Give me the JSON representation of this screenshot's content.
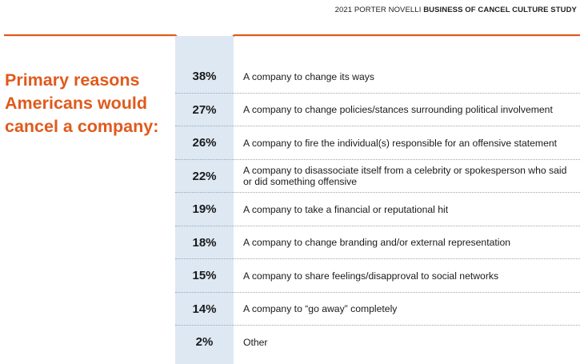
{
  "header": {
    "prefix": "2021 PORTER NOVELLI",
    "study": "BUSINESS OF CANCEL CULTURE STUDY"
  },
  "title": "Primary reasons Americans would cancel a company:",
  "colors": {
    "accent": "#e05a1c",
    "column_bg": "#dde8f3"
  },
  "chart_data": {
    "type": "table",
    "title": "Primary reasons Americans would cancel a company:",
    "rows": [
      {
        "value": "38%",
        "label": "A company to change its ways"
      },
      {
        "value": "27%",
        "label": "A company to change policies/stances surrounding political involvement"
      },
      {
        "value": "26%",
        "label": "A company to fire the individual(s) responsible for an offensive statement"
      },
      {
        "value": "22%",
        "label": "A company to disassociate itself from a celebrity or spokesperson who said or did something offensive"
      },
      {
        "value": "19%",
        "label": "A company to take a financial or reputational hit"
      },
      {
        "value": "18%",
        "label": "A company to change branding and/or external representation"
      },
      {
        "value": "15%",
        "label": "A company to share feelings/disapproval to social networks"
      },
      {
        "value": "14%",
        "label": "A company to “go away” completely"
      },
      {
        "value": "2%",
        "label": "Other"
      }
    ]
  }
}
